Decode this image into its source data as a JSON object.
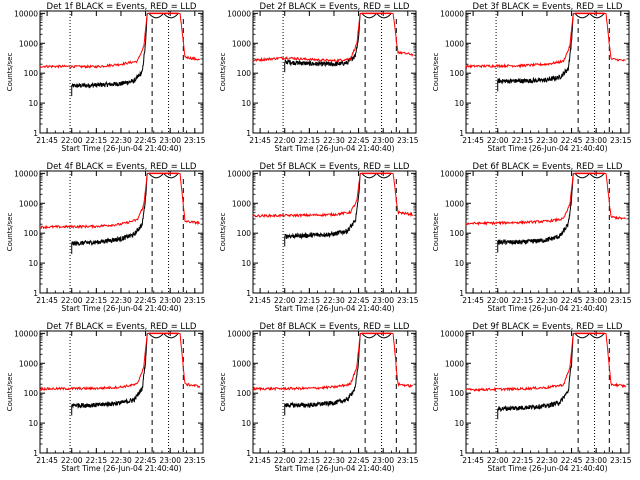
{
  "colors": {
    "events": "#000000",
    "lld": "#ff0000",
    "background": "#ffffff",
    "axes": "#000000"
  },
  "chart_data": {
    "type": "line",
    "scale": "log-y",
    "xlabel": "Start Time (26-Jun-04 21:40:40)",
    "ylabel": "Counts/sec",
    "x_ticks": [
      "21:45",
      "22:00",
      "22:15",
      "22:30",
      "22:45",
      "23:00",
      "23:15"
    ],
    "x_range": [
      "21:40:40",
      "23:20:00"
    ],
    "y_ticks": [
      "1",
      "10",
      "100",
      "1000",
      "10000"
    ],
    "y_range": [
      1,
      12000
    ],
    "series_labels": [
      "BLACK = Events",
      "RED = LLD"
    ],
    "panels": [
      {
        "title": "Det 1f BLACK = Events, RED = LLD",
        "dotted_lines": [
          "21:59",
          "22:59"
        ],
        "dashed_lines": [
          "22:49",
          "23:08"
        ],
        "saturation_window": [
          "22:47",
          "23:05"
        ],
        "events": [
          [
            "22:00",
            38
          ],
          [
            "22:15",
            40
          ],
          [
            "22:30",
            45
          ],
          [
            "22:38",
            55
          ],
          [
            "22:43",
            110
          ],
          [
            "22:45",
            1000
          ],
          [
            "22:46",
            10000
          ]
        ],
        "lld": [
          [
            "21:40:40",
            170
          ],
          [
            "22:15",
            165
          ],
          [
            "22:30",
            200
          ],
          [
            "22:40",
            250
          ],
          [
            "22:44",
            800
          ],
          [
            "22:46",
            10000
          ],
          [
            "23:06",
            10000
          ],
          [
            "23:09",
            350
          ],
          [
            "23:18",
            280
          ]
        ]
      },
      {
        "title": "Det 2f BLACK = Events, RED = LLD",
        "dotted_lines": [
          "21:59",
          "22:59"
        ],
        "dashed_lines": [
          "22:49",
          "23:08"
        ],
        "saturation_window": [
          "22:47",
          "23:05"
        ],
        "events": [
          [
            "22:00",
            240
          ],
          [
            "22:15",
            210
          ],
          [
            "22:30",
            200
          ],
          [
            "22:38",
            220
          ],
          [
            "22:43",
            400
          ],
          [
            "22:45",
            1500
          ],
          [
            "22:46",
            10000
          ]
        ],
        "lld": [
          [
            "21:40:40",
            270
          ],
          [
            "22:00",
            330
          ],
          [
            "22:15",
            290
          ],
          [
            "22:30",
            260
          ],
          [
            "22:40",
            300
          ],
          [
            "22:44",
            1000
          ],
          [
            "22:46",
            10000
          ],
          [
            "23:06",
            10000
          ],
          [
            "23:09",
            500
          ],
          [
            "23:18",
            420
          ]
        ]
      },
      {
        "title": "Det 3f BLACK = Events, RED = LLD",
        "dotted_lines": [
          "21:59",
          "22:59"
        ],
        "dashed_lines": [
          "22:49",
          "23:08"
        ],
        "saturation_window": [
          "22:47",
          "23:05"
        ],
        "events": [
          [
            "22:00",
            55
          ],
          [
            "22:15",
            55
          ],
          [
            "22:30",
            60
          ],
          [
            "22:38",
            75
          ],
          [
            "22:43",
            140
          ],
          [
            "22:45",
            1200
          ],
          [
            "22:46",
            10000
          ]
        ],
        "lld": [
          [
            "21:40:40",
            170
          ],
          [
            "22:15",
            180
          ],
          [
            "22:30",
            200
          ],
          [
            "22:40",
            250
          ],
          [
            "22:44",
            800
          ],
          [
            "22:46",
            10000
          ],
          [
            "23:06",
            10000
          ],
          [
            "23:09",
            300
          ],
          [
            "23:18",
            260
          ]
        ]
      },
      {
        "title": "Det 4f BLACK = Events, RED = LLD",
        "dotted_lines": [
          "21:59",
          "22:59"
        ],
        "dashed_lines": [
          "22:49",
          "23:08"
        ],
        "saturation_window": [
          "22:47",
          "23:05"
        ],
        "events": [
          [
            "22:00",
            45
          ],
          [
            "22:15",
            50
          ],
          [
            "22:30",
            65
          ],
          [
            "22:38",
            90
          ],
          [
            "22:43",
            200
          ],
          [
            "22:45",
            1500
          ],
          [
            "22:46",
            10000
          ]
        ],
        "lld": [
          [
            "21:40:40",
            160
          ],
          [
            "22:15",
            170
          ],
          [
            "22:30",
            200
          ],
          [
            "22:40",
            280
          ],
          [
            "22:44",
            900
          ],
          [
            "22:46",
            10000
          ],
          [
            "23:06",
            10000
          ],
          [
            "23:09",
            250
          ],
          [
            "23:18",
            220
          ]
        ]
      },
      {
        "title": "Det 5f BLACK = Events, RED = LLD",
        "dotted_lines": [
          "21:59",
          "22:59"
        ],
        "dashed_lines": [
          "22:49",
          "23:08"
        ],
        "saturation_window": [
          "22:47",
          "23:05"
        ],
        "events": [
          [
            "22:00",
            80
          ],
          [
            "22:15",
            85
          ],
          [
            "22:30",
            95
          ],
          [
            "22:38",
            120
          ],
          [
            "22:43",
            250
          ],
          [
            "22:45",
            1500
          ],
          [
            "22:46",
            10000
          ]
        ],
        "lld": [
          [
            "21:40:40",
            380
          ],
          [
            "22:15",
            400
          ],
          [
            "22:30",
            420
          ],
          [
            "22:40",
            500
          ],
          [
            "22:44",
            1200
          ],
          [
            "22:46",
            10000
          ],
          [
            "23:06",
            10000
          ],
          [
            "23:09",
            500
          ],
          [
            "23:18",
            420
          ]
        ]
      },
      {
        "title": "Det 6f BLACK = Events, RED = LLD",
        "dotted_lines": [
          "21:59",
          "22:59"
        ],
        "dashed_lines": [
          "22:49",
          "23:08"
        ],
        "saturation_window": [
          "22:47",
          "23:05"
        ],
        "events": [
          [
            "22:00",
            50
          ],
          [
            "22:15",
            50
          ],
          [
            "22:30",
            60
          ],
          [
            "22:38",
            80
          ],
          [
            "22:43",
            200
          ],
          [
            "22:45",
            1300
          ],
          [
            "22:46",
            10000
          ]
        ],
        "lld": [
          [
            "21:40:40",
            210
          ],
          [
            "22:15",
            230
          ],
          [
            "22:30",
            250
          ],
          [
            "22:40",
            300
          ],
          [
            "22:44",
            900
          ],
          [
            "22:46",
            10000
          ],
          [
            "23:06",
            10000
          ],
          [
            "23:09",
            350
          ],
          [
            "23:18",
            300
          ]
        ]
      },
      {
        "title": "Det 7f BLACK = Events, RED = LLD",
        "dotted_lines": [
          "21:59",
          "22:59"
        ],
        "dashed_lines": [
          "22:49",
          "23:08"
        ],
        "saturation_window": [
          "22:47",
          "23:05"
        ],
        "events": [
          [
            "22:00",
            40
          ],
          [
            "22:15",
            40
          ],
          [
            "22:30",
            48
          ],
          [
            "22:38",
            60
          ],
          [
            "22:43",
            150
          ],
          [
            "22:45",
            1200
          ],
          [
            "22:46",
            10000
          ]
        ],
        "lld": [
          [
            "21:40:40",
            140
          ],
          [
            "22:15",
            145
          ],
          [
            "22:30",
            160
          ],
          [
            "22:40",
            200
          ],
          [
            "22:44",
            800
          ],
          [
            "22:46",
            10000
          ],
          [
            "23:06",
            10000
          ],
          [
            "23:09",
            200
          ],
          [
            "23:18",
            170
          ]
        ]
      },
      {
        "title": "Det 8f BLACK = Events, RED = LLD",
        "dotted_lines": [
          "21:59",
          "22:59"
        ],
        "dashed_lines": [
          "22:49",
          "23:08"
        ],
        "saturation_window": [
          "22:47",
          "23:05"
        ],
        "events": [
          [
            "22:00",
            40
          ],
          [
            "22:15",
            40
          ],
          [
            "22:30",
            48
          ],
          [
            "22:38",
            60
          ],
          [
            "22:43",
            150
          ],
          [
            "22:45",
            1200
          ],
          [
            "22:46",
            10000
          ]
        ],
        "lld": [
          [
            "21:40:40",
            140
          ],
          [
            "22:15",
            145
          ],
          [
            "22:30",
            160
          ],
          [
            "22:40",
            200
          ],
          [
            "22:44",
            800
          ],
          [
            "22:46",
            10000
          ],
          [
            "23:06",
            10000
          ],
          [
            "23:09",
            200
          ],
          [
            "23:18",
            170
          ]
        ]
      },
      {
        "title": "Det 9f BLACK = Events, RED = LLD",
        "dotted_lines": [
          "21:59",
          "22:59"
        ],
        "dashed_lines": [
          "22:49",
          "23:08"
        ],
        "saturation_window": [
          "22:47",
          "23:05"
        ],
        "events": [
          [
            "22:00",
            30
          ],
          [
            "22:15",
            33
          ],
          [
            "22:30",
            38
          ],
          [
            "22:38",
            50
          ],
          [
            "22:43",
            120
          ],
          [
            "22:45",
            1100
          ],
          [
            "22:46",
            10000
          ]
        ],
        "lld": [
          [
            "21:40:40",
            130
          ],
          [
            "22:15",
            140
          ],
          [
            "22:30",
            155
          ],
          [
            "22:40",
            190
          ],
          [
            "22:44",
            700
          ],
          [
            "22:46",
            10000
          ],
          [
            "23:06",
            10000
          ],
          [
            "23:09",
            200
          ],
          [
            "23:18",
            170
          ]
        ]
      }
    ]
  }
}
